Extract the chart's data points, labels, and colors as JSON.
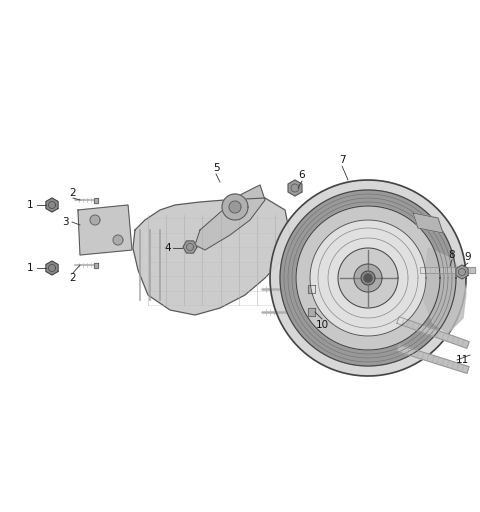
{
  "background_color": "#ffffff",
  "fig_width": 4.8,
  "fig_height": 5.12,
  "dpi": 100,
  "label_color": "#111111",
  "label_fontsize": 7.5,
  "line_color": "#333333",
  "line_lw": 0.6
}
